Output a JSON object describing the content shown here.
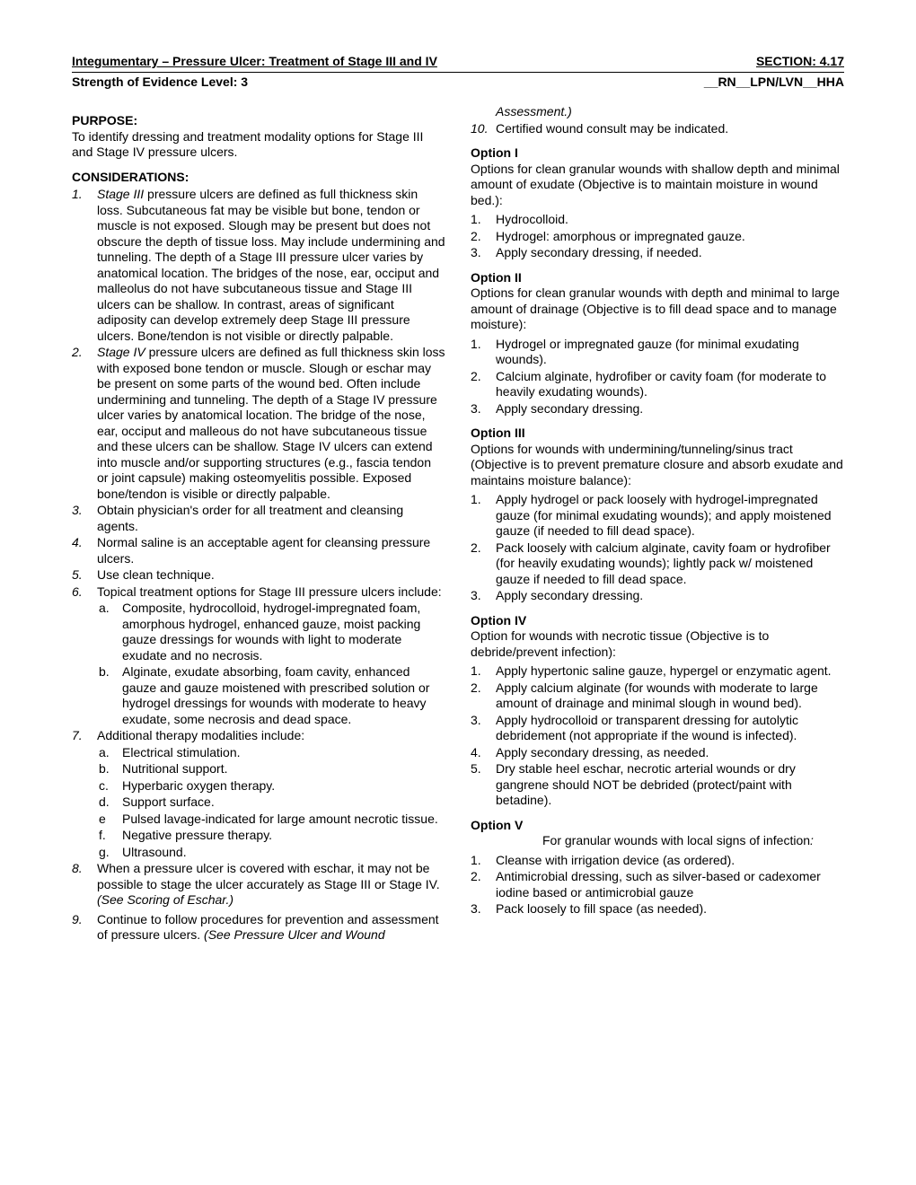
{
  "header": {
    "title_left": "Integumentary – Pressure Ulcer: Treatment of Stage III and IV",
    "title_right": "SECTION: 4.17",
    "sub_left": "Strength of Evidence Level: 3",
    "sub_right": "__RN__LPN/LVN__HHA"
  },
  "purpose": {
    "heading": "PURPOSE:",
    "text": "To identify dressing and treatment modality options for Stage III and Stage IV pressure ulcers."
  },
  "considerations": {
    "heading": "CONSIDERATIONS:",
    "items": [
      {
        "n": "1.",
        "pre_italic": "Stage III",
        "text": " pressure ulcers are defined as full thickness skin loss. Subcutaneous fat may be visible but bone, tendon or muscle is not exposed. Slough may be present but does not obscure the depth of tissue loss. May include undermining and tunneling.  The depth of a Stage III pressure ulcer varies by anatomical location. The bridges of the nose, ear, occiput and malleolus do not have subcutaneous tissue and Stage III ulcers can be shallow. In contrast, areas of significant adiposity can develop extremely deep Stage III pressure ulcers. Bone/tendon is not visible or directly palpable.",
        "italic_marker": true
      },
      {
        "n": "2.",
        "pre_italic": "Stage IV",
        "text": " pressure ulcers are defined as full thickness skin loss with exposed bone tendon or muscle. Slough or eschar may be present on some parts of the wound bed. Often include undermining and tunneling. The depth of a Stage IV pressure ulcer varies by anatomical location. The bridge of the nose, ear, occiput and malleous do not have subcutaneous tissue and these ulcers can be shallow. Stage IV ulcers can extend into muscle and/or supporting structures (e.g., fascia tendon or joint capsule) making osteomyelitis possible. Exposed bone/tendon is visible or directly palpable.",
        "italic_marker": true
      },
      {
        "n": "3.",
        "text": "Obtain physician's order for all treatment and cleansing agents.",
        "italic_marker": true
      },
      {
        "n": "4.",
        "text": "Normal saline is an acceptable agent for cleansing pressure ulcers.",
        "italic_marker": true
      },
      {
        "n": "5.",
        "text": "Use clean technique.",
        "italic_marker": true
      },
      {
        "n": "6.",
        "text": "Topical treatment options for Stage III pressure ulcers include:",
        "italic_marker": true,
        "sub": [
          {
            "n": "a.",
            "text": "Composite, hydrocolloid, hydrogel-impregnated foam, amorphous hydrogel, enhanced gauze, moist packing gauze dressings for wounds with light to moderate exudate and no necrosis."
          },
          {
            "n": "b.",
            "text": "Alginate, exudate absorbing, foam cavity, enhanced gauze and gauze moistened with prescribed solution or hydrogel dressings for wounds with moderate to heavy exudate, some necrosis and dead space."
          }
        ]
      },
      {
        "n": "7.",
        "text": "Additional therapy modalities include:",
        "italic_marker": true,
        "sub": [
          {
            "n": "a.",
            "text": "Electrical stimulation."
          },
          {
            "n": "b.",
            "text": "Nutritional support."
          },
          {
            "n": "c.",
            "text": "Hyperbaric oxygen therapy."
          },
          {
            "n": "d.",
            "text": "Support surface."
          },
          {
            "n": "e",
            "text": "Pulsed lavage-indicated for large amount necrotic tissue."
          },
          {
            "n": "f.",
            "text": "Negative pressure therapy."
          },
          {
            "n": "g.",
            "text": "Ultrasound."
          }
        ]
      },
      {
        "n": "8.",
        "text": "When a pressure ulcer is covered with eschar, it may not be possible to stage the ulcer accurately as Stage III or Stage IV.",
        "post_italic": " (See Scoring of Eschar.)",
        "italic_marker": true
      }
    ]
  },
  "cont_items": [
    {
      "n": "9.",
      "text": "Continue to follow procedures for prevention and assessment of pressure ulcers.",
      "post_italic": " (See Pressure Ulcer and Wound Assessment.)",
      "italic_marker": true
    },
    {
      "n": "10.",
      "text": "Certified wound consult may be indicated.",
      "italic_marker": true
    }
  ],
  "option1": {
    "head": "Option I",
    "intro": "Options for clean granular wounds with shallow depth and minimal amount of exudate (Objective is to maintain moisture in wound bed.):",
    "items": [
      {
        "n": "1.",
        "text": "Hydrocolloid."
      },
      {
        "n": "2.",
        "text": "Hydrogel: amorphous or impregnated gauze."
      },
      {
        "n": "3.",
        "text": "Apply secondary dressing, if needed."
      }
    ]
  },
  "option2": {
    "head": "Option II",
    "intro": "Options for clean granular wounds with depth and minimal to large amount of drainage (Objective is to fill dead space and to manage moisture):",
    "items": [
      {
        "n": "1.",
        "text": "Hydrogel or impregnated gauze (for minimal exudating wounds)."
      },
      {
        "n": "2.",
        "text": "Calcium alginate, hydrofiber or cavity foam (for moderate to heavily exudating wounds)."
      },
      {
        "n": "3.",
        "text": "Apply secondary dressing."
      }
    ]
  },
  "option3": {
    "head": "Option III",
    "intro": "Options for wounds with undermining/tunneling/sinus tract (Objective is to prevent premature closure and absorb exudate and maintains moisture balance):",
    "items": [
      {
        "n": "1.",
        "text": "Apply hydrogel or pack loosely with hydrogel-impregnated gauze (for minimal exudating wounds); and apply moistened gauze (if needed to fill dead space)."
      },
      {
        "n": "2.",
        "text": "Pack loosely with calcium alginate, cavity foam or hydrofiber (for heavily exudating wounds); lightly pack w/ moistened gauze if needed to fill dead space."
      },
      {
        "n": "3.",
        "text": "Apply secondary dressing."
      }
    ]
  },
  "option4": {
    "head": "Option IV",
    "intro": "Option for wounds with necrotic tissue (Objective is to debride/prevent infection):",
    "items": [
      {
        "n": "1.",
        "text": "Apply hypertonic saline gauze, hypergel or enzymatic agent."
      },
      {
        "n": "2.",
        "text": "Apply calcium alginate (for wounds with moderate to large amount of drainage and minimal slough in wound bed)."
      },
      {
        "n": "3.",
        "text": "Apply hydrocolloid or transparent dressing for autolytic debridement (not appropriate if the wound is infected)."
      },
      {
        "n": "4.",
        "text": "Apply secondary dressing, as needed."
      },
      {
        "n": "5.",
        "text": "Dry stable heel eschar, necrotic arterial wounds or dry gangrene should NOT be debrided (protect/paint with betadine)."
      }
    ]
  },
  "option5": {
    "head": "Option V",
    "intro_indent": "For granular wounds with local signs of infection",
    "intro_suffix": ":",
    "items": [
      {
        "n": "1.",
        "text": "Cleanse with irrigation device (as ordered)."
      },
      {
        "n": "2.",
        "text": "Antimicrobial dressing, such as silver-based or cadexomer iodine based or antimicrobial gauze"
      },
      {
        "n": "3.",
        "text": "Pack loosely to fill space (as needed)."
      }
    ]
  }
}
